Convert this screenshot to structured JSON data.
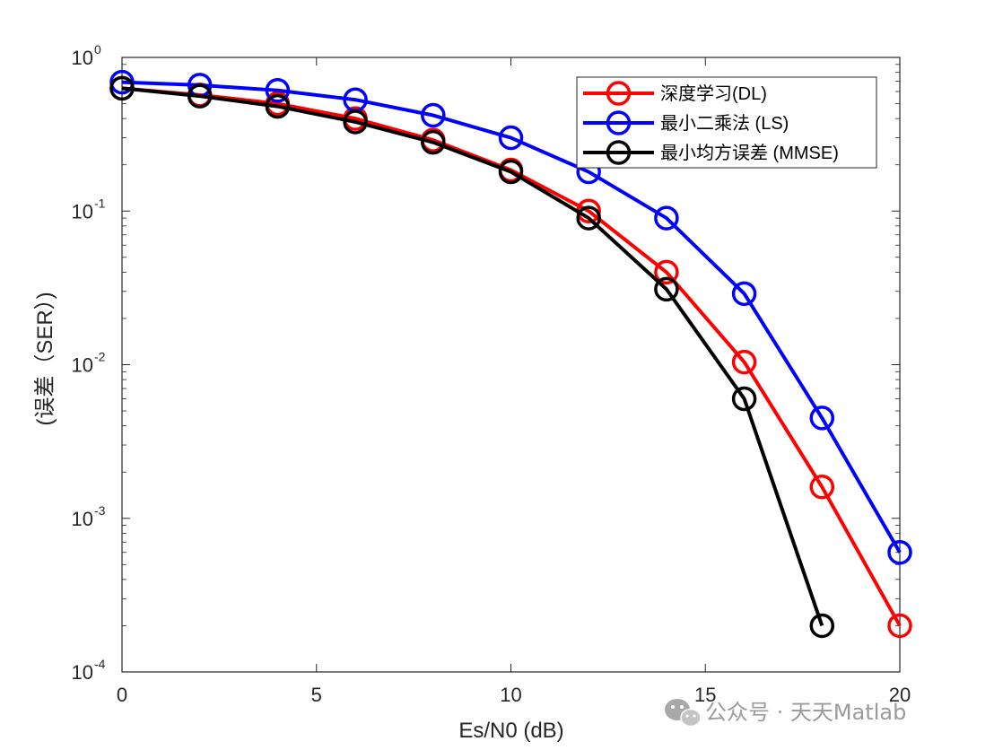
{
  "chart_data": {
    "type": "line",
    "title": "",
    "xlabel": "Es/N0 (dB)",
    "ylabel": "(误差（SER）)",
    "xscale": "linear",
    "yscale": "log",
    "xlim": [
      0,
      20
    ],
    "ylim": [
      0.0001,
      1
    ],
    "xticks": [
      0,
      5,
      10,
      15,
      20
    ],
    "yticks": [
      {
        "value": 1,
        "base": "10",
        "exp": "0"
      },
      {
        "value": 0.1,
        "base": "10",
        "exp": "-1"
      },
      {
        "value": 0.01,
        "base": "10",
        "exp": "-2"
      },
      {
        "value": 0.001,
        "base": "10",
        "exp": "-3"
      },
      {
        "value": 0.0001,
        "base": "10",
        "exp": "-4"
      }
    ],
    "grid": false,
    "legend_position": "top-right",
    "series": [
      {
        "name": "深度学习(DL)",
        "color": "#ff0000",
        "marker": "circle",
        "x": [
          0,
          2,
          4,
          6,
          8,
          10,
          12,
          14,
          16,
          18,
          20
        ],
        "values": [
          0.63,
          0.57,
          0.5,
          0.4,
          0.29,
          0.185,
          0.1,
          0.04,
          0.0104,
          0.0016,
          0.0002
        ]
      },
      {
        "name": "最小二乘法 (LS)",
        "color": "#0000ff",
        "marker": "circle",
        "x": [
          0,
          2,
          4,
          6,
          8,
          10,
          12,
          14,
          16,
          18,
          20
        ],
        "values": [
          0.69,
          0.66,
          0.61,
          0.53,
          0.42,
          0.3,
          0.18,
          0.09,
          0.029,
          0.0045,
          0.0006
        ]
      },
      {
        "name": "最小均方误差 (MMSE)",
        "color": "#000000",
        "marker": "circle",
        "x": [
          0,
          2,
          4,
          6,
          8,
          10,
          12,
          14,
          16,
          18
        ],
        "values": [
          0.63,
          0.56,
          0.48,
          0.38,
          0.28,
          0.18,
          0.09,
          0.031,
          0.006,
          0.0002
        ]
      }
    ]
  },
  "watermark": {
    "text": "公众号 · 天天Matlab",
    "icon": "wechat-icon"
  }
}
